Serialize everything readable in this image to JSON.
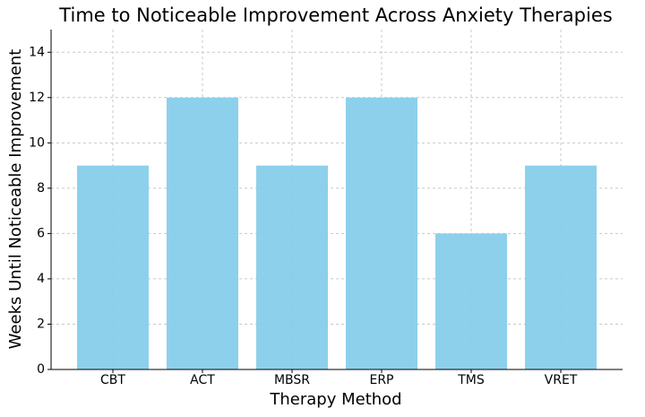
{
  "chart_data": {
    "type": "bar",
    "title": "Time to Noticeable Improvement Across Anxiety Therapies",
    "x_label": "Therapy Method",
    "y_label": "Weeks Until Noticeable Improvement",
    "categories": [
      "CBT",
      "ACT",
      "MBSR",
      "ERP",
      "TMS",
      "VRET"
    ],
    "values": [
      9,
      12,
      9,
      12,
      6,
      9
    ],
    "color": "#87ceeb",
    "ylim": [
      0,
      15
    ],
    "yticks": [
      0,
      2,
      4,
      6,
      8,
      10,
      12,
      14
    ],
    "grid": true
  }
}
